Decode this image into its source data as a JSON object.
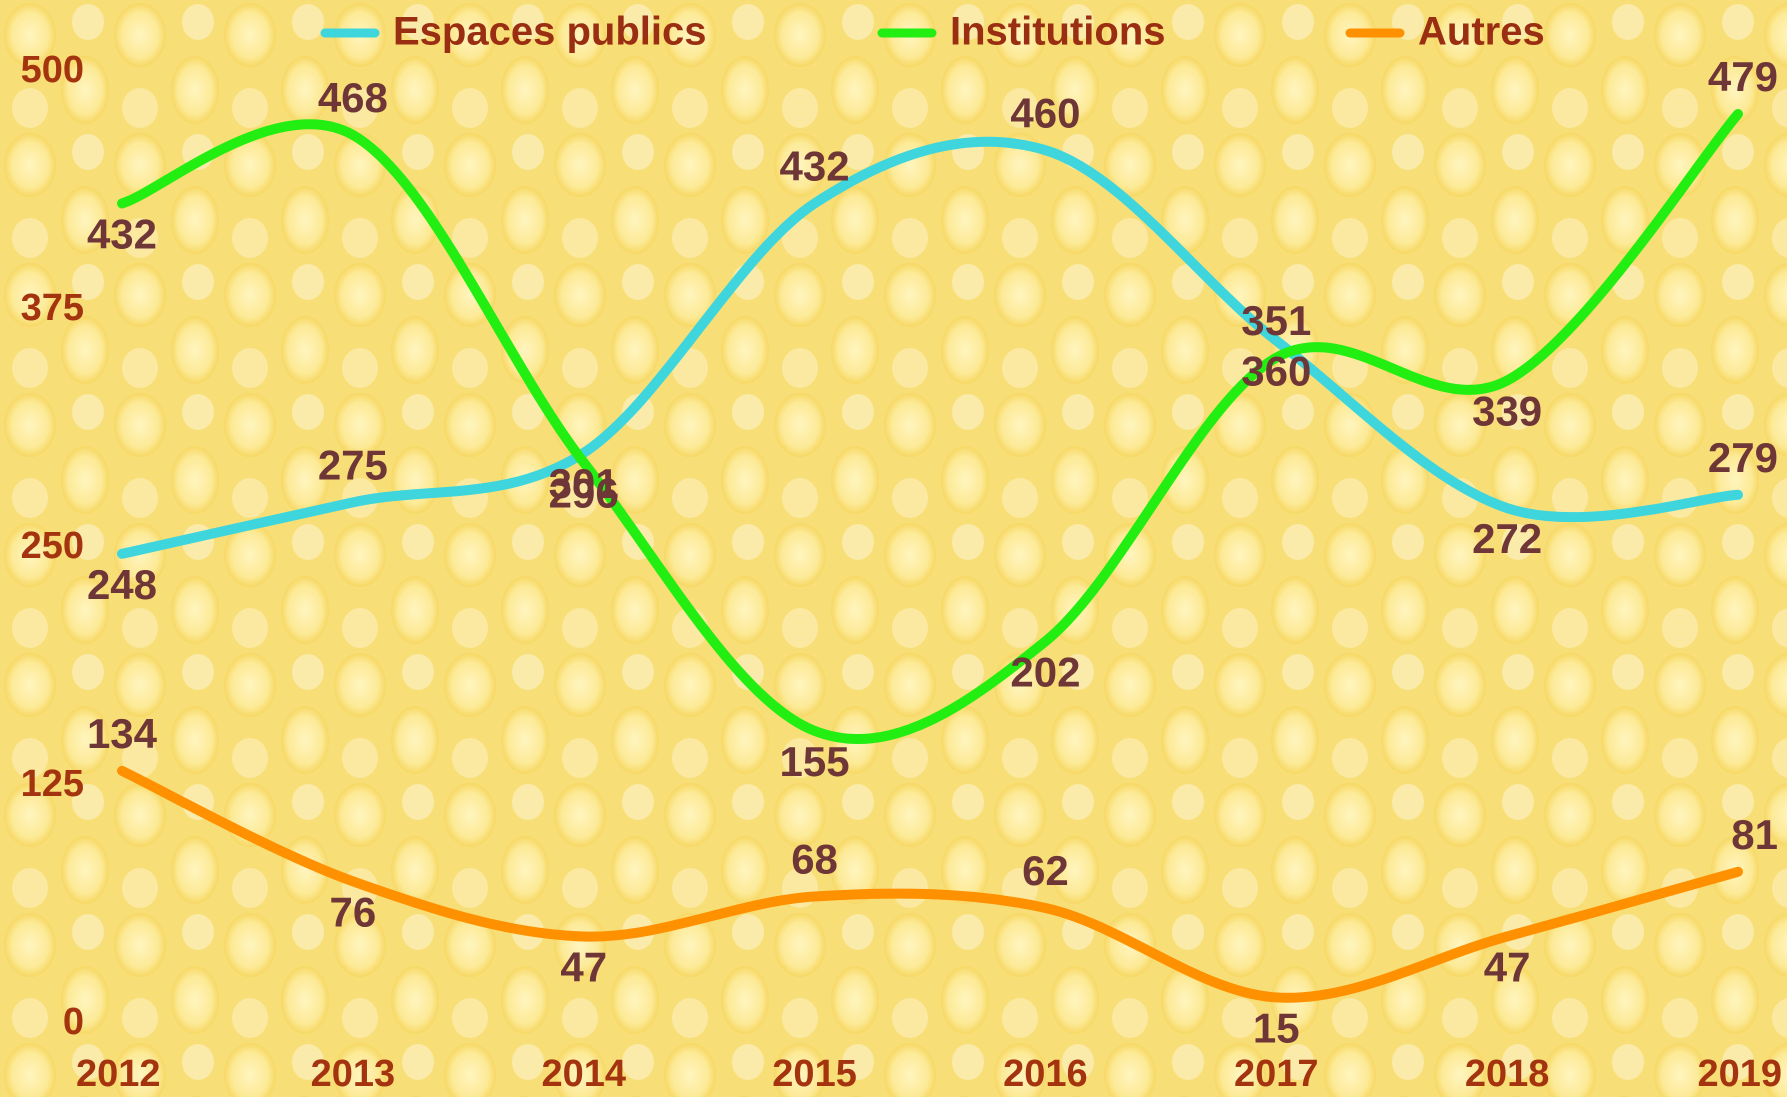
{
  "chart_data": {
    "type": "line",
    "categories": [
      "2012",
      "2013",
      "2014",
      "2015",
      "2016",
      "2017",
      "2018",
      "2019"
    ],
    "series": [
      {
        "name": "Espaces publics",
        "color": "#3ed6dc",
        "values": [
          248,
          275,
          301,
          432,
          460,
          360,
          272,
          279
        ]
      },
      {
        "name": "Institutions",
        "color": "#22ee11",
        "values": [
          432,
          468,
          296,
          155,
          202,
          351,
          339,
          479
        ]
      },
      {
        "name": "Autres",
        "color": "#ff9000",
        "values": [
          134,
          76,
          47,
          68,
          62,
          15,
          47,
          81
        ]
      }
    ],
    "ylim": [
      0,
      500
    ],
    "yticks": [
      0,
      125,
      250,
      375,
      500
    ],
    "grid": false,
    "legend": "top"
  }
}
